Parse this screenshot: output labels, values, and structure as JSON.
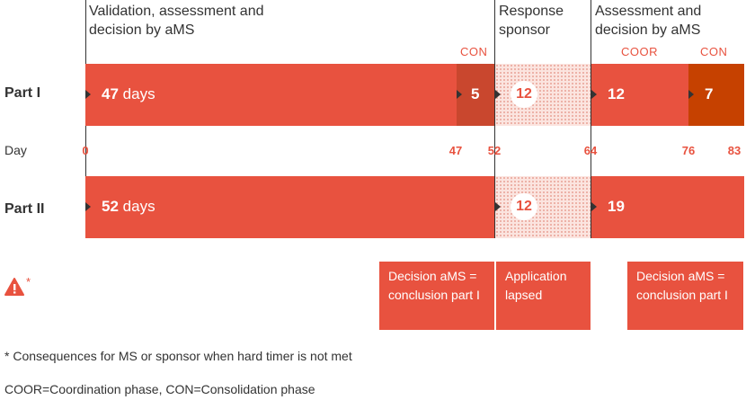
{
  "phases": {
    "validation": "Validation, assessment and decision by aMS",
    "response": "Response sponsor",
    "assessment": "Assessment and decision by aMS"
  },
  "phase_labels": {
    "con1": "CON",
    "coor": "COOR",
    "con2": "CON"
  },
  "rows": {
    "part1": {
      "label": "Part I",
      "seg1_num": "47",
      "seg1_unit": "days",
      "seg2": "5",
      "seg3": "12",
      "seg4": "12",
      "seg5": "7"
    },
    "part2": {
      "label": "Part II",
      "seg1_num": "52",
      "seg1_unit": "days",
      "seg3": "12",
      "seg4": "19"
    }
  },
  "day_axis": {
    "label": "Day",
    "ticks": [
      "0",
      "47",
      "52",
      "64",
      "76",
      "83"
    ]
  },
  "callouts": {
    "c1": "Decision aMS = conclusion part I",
    "c2": "Application lapsed",
    "c3": "Decision aMS = conclusion part I"
  },
  "warning": {
    "asterisk": "*"
  },
  "footnotes": {
    "f1": "* Consequences for MS or sponsor when hard timer is not met",
    "f2": "COOR=Coordination phase, CON=Consolidation phase"
  },
  "colors": {
    "main": "#e8523f",
    "con1": "#c9472e",
    "con2": "#c64100",
    "text": "#333333"
  }
}
